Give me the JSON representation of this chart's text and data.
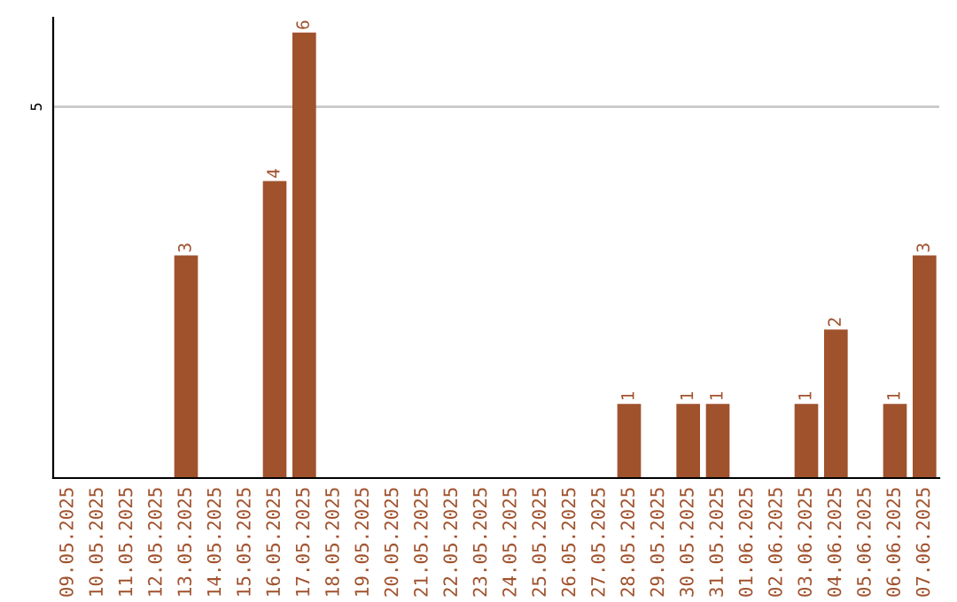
{
  "chart_data": {
    "type": "bar",
    "categories": [
      "09.05.2025",
      "10.05.2025",
      "11.05.2025",
      "12.05.2025",
      "13.05.2025",
      "14.05.2025",
      "15.05.2025",
      "16.05.2025",
      "17.05.2025",
      "18.05.2025",
      "19.05.2025",
      "20.05.2025",
      "21.05.2025",
      "22.05.2025",
      "23.05.2025",
      "24.05.2025",
      "25.05.2025",
      "26.05.2025",
      "27.05.2025",
      "28.05.2025",
      "29.05.2025",
      "30.05.2025",
      "31.05.2025",
      "01.06.2025",
      "02.06.2025",
      "03.06.2025",
      "04.06.2025",
      "05.06.2025",
      "06.06.2025",
      "07.06.2025"
    ],
    "values": [
      0,
      0,
      0,
      0,
      3,
      0,
      0,
      4,
      6,
      0,
      0,
      0,
      0,
      0,
      0,
      0,
      0,
      0,
      0,
      1,
      0,
      1,
      1,
      0,
      0,
      1,
      2,
      0,
      1,
      3
    ],
    "value_labels": [
      null,
      null,
      null,
      null,
      "3",
      null,
      null,
      "4",
      "6",
      null,
      null,
      null,
      null,
      null,
      null,
      null,
      null,
      null,
      null,
      "1",
      null,
      "1",
      "1",
      null,
      null,
      "1",
      "2",
      null,
      "1",
      "3"
    ],
    "color": "#a0522d",
    "ylim": [
      0,
      6.2
    ],
    "yticks": [
      5
    ],
    "grid": "y",
    "legend": false
  }
}
